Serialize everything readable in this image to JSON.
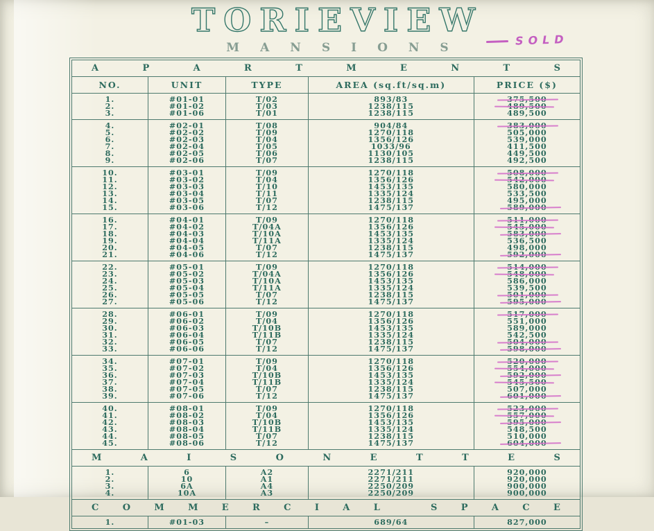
{
  "page": {
    "title": "TORIEVIEW",
    "subtitle": "MANSIONS",
    "annotation": {
      "label": "SOLD"
    }
  },
  "colors": {
    "ink": "#2d6b5e",
    "paper": "#f3f1e4",
    "strike_pink": "#d471c9",
    "sold_note_pink": "#c45fc1",
    "subtitle_gray_green": "#869d92"
  },
  "table": {
    "columns": [
      "NO.",
      "UNIT",
      "TYPE",
      "AREA (sq.ft/sq.m)",
      "PRICE ($)"
    ],
    "sections": [
      {
        "header": "APARTMENTS",
        "blocks": [
          [
            {
              "no": "1.",
              "unit": "#01-01",
              "type": "T/02",
              "area": "893/83",
              "price": "375,500",
              "sold": true
            },
            {
              "no": "2.",
              "unit": "#01-02",
              "type": "T/03",
              "area": "1238/115",
              "price": "489,500",
              "sold": true
            },
            {
              "no": "3.",
              "unit": "#01-06",
              "type": "T/01",
              "area": "1238/115",
              "price": "489,500",
              "sold": false
            }
          ],
          [
            {
              "no": "4.",
              "unit": "#02-01",
              "type": "T/08",
              "area": "904/84",
              "price": "383,000",
              "sold": true
            },
            {
              "no": "5.",
              "unit": "#02-02",
              "type": "T/09",
              "area": "1270/118",
              "price": "505,000",
              "sold": false
            },
            {
              "no": "6.",
              "unit": "#02-03",
              "type": "T/04",
              "area": "1356/126",
              "price": "539,000",
              "sold": false
            },
            {
              "no": "7.",
              "unit": "#02-04",
              "type": "T/05",
              "area": "1033/96",
              "price": "411,500",
              "sold": false
            },
            {
              "no": "8.",
              "unit": "#02-05",
              "type": "T/06",
              "area": "1130/105",
              "price": "449,500",
              "sold": false
            },
            {
              "no": "9.",
              "unit": "#02-06",
              "type": "T/07",
              "area": "1238/115",
              "price": "492,500",
              "sold": false
            }
          ],
          [
            {
              "no": "10.",
              "unit": "#03-01",
              "type": "T/09",
              "area": "1270/118",
              "price": "508,000",
              "sold": true
            },
            {
              "no": "11.",
              "unit": "#03-02",
              "type": "T/04",
              "area": "1356/126",
              "price": "542,000",
              "sold": true
            },
            {
              "no": "12.",
              "unit": "#03-03",
              "type": "T/10",
              "area": "1453/135",
              "price": "580,000",
              "sold": false
            },
            {
              "no": "13.",
              "unit": "#03-04",
              "type": "T/11",
              "area": "1335/124",
              "price": "533,500",
              "sold": false
            },
            {
              "no": "14.",
              "unit": "#03-05",
              "type": "T/07",
              "area": "1238/115",
              "price": "495,000",
              "sold": false
            },
            {
              "no": "15.",
              "unit": "#03-06",
              "type": "T/12",
              "area": "1475/137",
              "price": "589,000",
              "sold": true
            }
          ],
          [
            {
              "no": "16.",
              "unit": "#04-01",
              "type": "T/09",
              "area": "1270/118",
              "price": "511,000",
              "sold": true
            },
            {
              "no": "17.",
              "unit": "#04-02",
              "type": "T/04A",
              "area": "1356/126",
              "price": "545,000",
              "sold": true
            },
            {
              "no": "18.",
              "unit": "#04-03",
              "type": "T/10A",
              "area": "1453/135",
              "price": "583,000",
              "sold": true
            },
            {
              "no": "19.",
              "unit": "#04-04",
              "type": "T/11A",
              "area": "1335/124",
              "price": "536,500",
              "sold": false
            },
            {
              "no": "20.",
              "unit": "#04-05",
              "type": "T/07",
              "area": "1238/115",
              "price": "498,000",
              "sold": false
            },
            {
              "no": "21.",
              "unit": "#04-06",
              "type": "T/12",
              "area": "1475/137",
              "price": "592,000",
              "sold": true
            }
          ],
          [
            {
              "no": "22.",
              "unit": "#05-01",
              "type": "T/09",
              "area": "1270/118",
              "price": "514,000",
              "sold": true
            },
            {
              "no": "23.",
              "unit": "#05-02",
              "type": "T/04A",
              "area": "1356/126",
              "price": "548,000",
              "sold": true
            },
            {
              "no": "24.",
              "unit": "#05-03",
              "type": "T/10A",
              "area": "1453/135",
              "price": "586,000",
              "sold": false
            },
            {
              "no": "25.",
              "unit": "#05-04",
              "type": "T/11A",
              "area": "1335/124",
              "price": "539,500",
              "sold": false
            },
            {
              "no": "26.",
              "unit": "#05-05",
              "type": "T/07",
              "area": "1238/115",
              "price": "501,000",
              "sold": true
            },
            {
              "no": "27.",
              "unit": "#05-06",
              "type": "T/12",
              "area": "1475/137",
              "price": "595,000",
              "sold": true
            }
          ],
          [
            {
              "no": "28.",
              "unit": "#06-01",
              "type": "T/09",
              "area": "1270/118",
              "price": "517,000",
              "sold": true
            },
            {
              "no": "29.",
              "unit": "#06-02",
              "type": "T/04",
              "area": "1356/126",
              "price": "551,000",
              "sold": false
            },
            {
              "no": "30.",
              "unit": "#06-03",
              "type": "T/10B",
              "area": "1453/135",
              "price": "589,000",
              "sold": false
            },
            {
              "no": "31.",
              "unit": "#06-04",
              "type": "T/11B",
              "area": "1335/124",
              "price": "542,500",
              "sold": false
            },
            {
              "no": "32.",
              "unit": "#06-05",
              "type": "T/07",
              "area": "1238/115",
              "price": "504,000",
              "sold": true
            },
            {
              "no": "33.",
              "unit": "#06-06",
              "type": "T/12",
              "area": "1475/137",
              "price": "598,000",
              "sold": true
            }
          ],
          [
            {
              "no": "34.",
              "unit": "#07-01",
              "type": "T/09",
              "area": "1270/118",
              "price": "520,000",
              "sold": true
            },
            {
              "no": "35.",
              "unit": "#07-02",
              "type": "T/04",
              "area": "1356/126",
              "price": "554,000",
              "sold": true
            },
            {
              "no": "36.",
              "unit": "#07-03",
              "type": "T/10B",
              "area": "1453/135",
              "price": "592,000",
              "sold": true
            },
            {
              "no": "37.",
              "unit": "#07-04",
              "type": "T/11B",
              "area": "1335/124",
              "price": "545,500",
              "sold": true
            },
            {
              "no": "38.",
              "unit": "#07-05",
              "type": "T/07",
              "area": "1238/115",
              "price": "507,000",
              "sold": false
            },
            {
              "no": "39.",
              "unit": "#07-06",
              "type": "T/12",
              "area": "1475/137",
              "price": "601,000",
              "sold": true
            }
          ],
          [
            {
              "no": "40.",
              "unit": "#08-01",
              "type": "T/09",
              "area": "1270/118",
              "price": "523,000",
              "sold": true
            },
            {
              "no": "41.",
              "unit": "#08-02",
              "type": "T/04",
              "area": "1356/126",
              "price": "557,000",
              "sold": true
            },
            {
              "no": "42.",
              "unit": "#08-03",
              "type": "T/10B",
              "area": "1453/135",
              "price": "595,000",
              "sold": true
            },
            {
              "no": "43.",
              "unit": "#08-04",
              "type": "T/11B",
              "area": "1335/124",
              "price": "548,500",
              "sold": false
            },
            {
              "no": "44.",
              "unit": "#08-05",
              "type": "T/07",
              "area": "1238/115",
              "price": "510,000",
              "sold": false
            },
            {
              "no": "45.",
              "unit": "#08-06",
              "type": "T/12",
              "area": "1475/137",
              "price": "604,000",
              "sold": true
            }
          ]
        ]
      },
      {
        "header": "MAISONETTES",
        "blocks": [
          [
            {
              "no": "1.",
              "unit": "6",
              "type": "A2",
              "area": "2271/211",
              "price": "920,000",
              "sold": false
            },
            {
              "no": "2.",
              "unit": "10",
              "type": "A1",
              "area": "2271/211",
              "price": "920,000",
              "sold": false
            },
            {
              "no": "3.",
              "unit": "6A",
              "type": "A4",
              "area": "2250/209",
              "price": "900,000",
              "sold": false
            },
            {
              "no": "4.",
              "unit": "10A",
              "type": "A3",
              "area": "2250/209",
              "price": "900,000",
              "sold": false
            }
          ]
        ]
      },
      {
        "header": "COMMERCIAL SPACE",
        "blocks": [
          [
            {
              "no": "1.",
              "unit": "#01-03",
              "type": "–",
              "area": "689/64",
              "price": "827,000",
              "sold": false
            }
          ]
        ]
      }
    ]
  }
}
